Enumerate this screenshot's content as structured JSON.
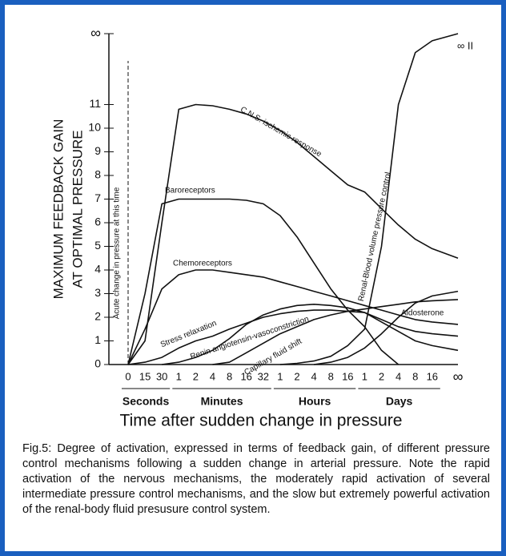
{
  "chart_data": {
    "type": "line",
    "ylabel": [
      "MAXIMUM FEEDBACK GAIN",
      "AT OPTIMAL PRESSURE"
    ],
    "xlabel": "Time after sudden change in pressure",
    "annotation": "Acute change in pressure at this time",
    "corner_label": "∞ II",
    "categories": [
      "0",
      "15",
      "30",
      "1",
      "2",
      "4",
      "8",
      "16",
      "32",
      "1",
      "2",
      "4",
      "8",
      "16",
      "1",
      "2",
      "4",
      "8",
      "16",
      "∞"
    ],
    "x_groups": [
      {
        "label": "Seconds",
        "from": 0,
        "to": 2
      },
      {
        "label": "Minutes",
        "from": 3,
        "to": 8
      },
      {
        "label": "Hours",
        "from": 9,
        "to": 13
      },
      {
        "label": "Days",
        "from": 14,
        "to": 18
      }
    ],
    "ylim": [
      0,
      14
    ],
    "yticks": [
      0,
      1,
      2,
      3,
      4,
      5,
      6,
      7,
      8,
      9,
      10,
      11,
      {
        "value": 14,
        "label": "∞"
      }
    ],
    "series": [
      {
        "name": "C.N.S. ischemic response",
        "color": "#111111",
        "values": [
          0,
          1,
          6,
          10.8,
          11,
          10.95,
          10.8,
          10.6,
          10.3,
          9.9,
          9.4,
          8.8,
          8.2,
          7.6,
          7.3,
          6.6,
          5.9,
          5.3,
          4.9,
          4.5
        ]
      },
      {
        "name": "Baroreceptors",
        "color": "#111111",
        "values": [
          0,
          3,
          6.8,
          7,
          7,
          7,
          7,
          6.95,
          6.8,
          6.3,
          5.4,
          4.3,
          3.2,
          2.3,
          1.6,
          0.6,
          0,
          null,
          null,
          null
        ]
      },
      {
        "name": "Chemoreceptors",
        "color": "#111111",
        "values": [
          0,
          1.5,
          3.2,
          3.8,
          4,
          4,
          3.9,
          3.8,
          3.7,
          3.5,
          3.3,
          3.1,
          2.9,
          2.7,
          2.5,
          2.3,
          2.1,
          1.9,
          1.8,
          1.7
        ]
      },
      {
        "name": "Stress relaxation",
        "color": "#111111",
        "values": [
          0,
          0.1,
          0.3,
          0.7,
          1,
          1.2,
          1.5,
          1.75,
          2,
          2.15,
          2.25,
          2.3,
          2.3,
          2.25,
          2.2,
          1.9,
          1.6,
          1.4,
          1.3,
          1.2
        ]
      },
      {
        "name": "Renin angiotensin-vasoconstriction",
        "color": "#111111",
        "values": [
          null,
          null,
          0,
          0.1,
          0.3,
          0.6,
          1.1,
          1.7,
          2.1,
          2.35,
          2.5,
          2.55,
          2.5,
          2.4,
          2.2,
          1.8,
          1.4,
          1.0,
          0.8,
          0.6
        ]
      },
      {
        "name": "Capillary fluid shift",
        "color": "#111111",
        "values": [
          null,
          null,
          null,
          null,
          null,
          0,
          0.1,
          0.5,
          0.9,
          1.3,
          1.6,
          1.9,
          2.1,
          2.25,
          2.35,
          2.45,
          2.55,
          2.65,
          2.7,
          2.75
        ]
      },
      {
        "name": "Renal-Blood volume pressure control",
        "color": "#111111",
        "values": [
          null,
          null,
          null,
          null,
          null,
          null,
          null,
          null,
          null,
          0,
          0.05,
          0.15,
          0.35,
          0.8,
          1.5,
          5,
          11,
          13.2,
          13.7,
          14
        ]
      },
      {
        "name": "Aldosterone",
        "color": "#111111",
        "values": [
          null,
          null,
          null,
          null,
          null,
          null,
          null,
          null,
          null,
          null,
          null,
          0,
          0.1,
          0.3,
          0.7,
          1.3,
          2,
          2.6,
          2.9,
          3.1
        ]
      }
    ]
  },
  "caption": "Fig.5: Degree of activation, expressed in terms of feedback gain, of different pressure control mechanisms following a sudden change in arterial pressure. Note the rapid activation of the nervous mechanisms, the moderately rapid activation of several intermediate pressure control mechanisms, and the slow but extremely powerful activation of the renal-body fluid presusure control system."
}
